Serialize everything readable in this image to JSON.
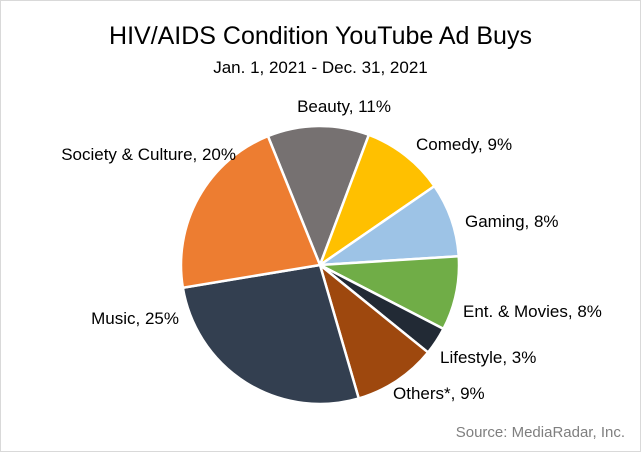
{
  "chart_data": {
    "type": "pie",
    "title": "HIV/AIDS Condition YouTube Ad Buys",
    "subtitle": "Jan. 1, 2021 - Dec. 31, 2021",
    "slices": [
      {
        "label": "Beauty, 11%",
        "value": 11,
        "color": "#767171"
      },
      {
        "label": "Comedy, 9%",
        "value": 9,
        "color": "#ffc000"
      },
      {
        "label": "Gaming, 8%",
        "value": 8,
        "color": "#9dc3e6"
      },
      {
        "label": "Ent. & Movies, 8%",
        "value": 8,
        "color": "#70ad47"
      },
      {
        "label": "Lifestyle, 3%",
        "value": 3,
        "color": "#222a35"
      },
      {
        "label": "Others*, 9%",
        "value": 9,
        "color": "#9e480e"
      },
      {
        "label": "Music, 25%",
        "value": 25,
        "color": "#333f50"
      },
      {
        "label": "Society & Culture, 20%",
        "value": 20,
        "color": "#ed7d31"
      }
    ]
  },
  "source": "Source: MediaRadar, Inc."
}
